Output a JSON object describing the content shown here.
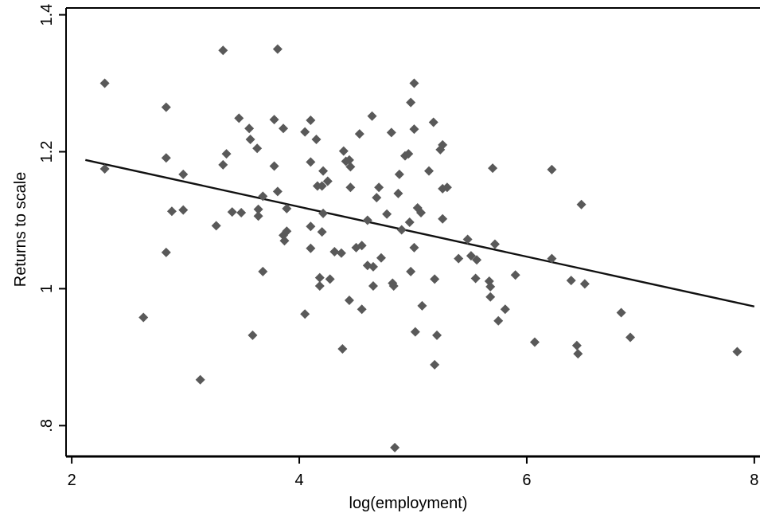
{
  "chart_data": {
    "type": "scatter",
    "title": "",
    "xlabel": "log(employment)",
    "ylabel": "Returns to scale",
    "xlim": [
      1.95,
      8.05
    ],
    "ylim": [
      0.755,
      1.41
    ],
    "x_ticks": [
      2,
      4,
      6,
      8
    ],
    "x_tick_labels": [
      "2",
      "4",
      "6",
      "8"
    ],
    "y_ticks": [
      0.8,
      1.0,
      1.2,
      1.4
    ],
    "y_tick_labels": [
      ".8",
      "1",
      "1.2",
      "1.4"
    ],
    "grid": false,
    "legend": "none",
    "marker_color": "#595959",
    "line_color": "#111111",
    "series": [
      {
        "kind": "points",
        "points": [
          [
            2.29,
            1.3
          ],
          [
            2.29,
            1.175
          ],
          [
            2.63,
            0.958
          ],
          [
            2.83,
            1.265
          ],
          [
            2.83,
            1.191
          ],
          [
            2.83,
            1.053
          ],
          [
            2.88,
            1.113
          ],
          [
            2.98,
            1.167
          ],
          [
            2.98,
            1.115
          ],
          [
            3.13,
            0.867
          ],
          [
            3.27,
            1.092
          ],
          [
            3.33,
            1.348
          ],
          [
            3.33,
            1.181
          ],
          [
            3.36,
            1.197
          ],
          [
            3.41,
            1.112
          ],
          [
            3.47,
            1.249
          ],
          [
            3.49,
            1.111
          ],
          [
            3.56,
            1.234
          ],
          [
            3.57,
            1.218
          ],
          [
            3.59,
            0.932
          ],
          [
            3.63,
            1.205
          ],
          [
            3.64,
            1.116
          ],
          [
            3.64,
            1.106
          ],
          [
            3.68,
            1.135
          ],
          [
            3.68,
            1.025
          ],
          [
            3.78,
            1.247
          ],
          [
            3.78,
            1.179
          ],
          [
            3.81,
            1.35
          ],
          [
            3.81,
            1.142
          ],
          [
            3.86,
            1.234
          ],
          [
            3.86,
            1.078
          ],
          [
            3.87,
            1.07
          ],
          [
            3.89,
            1.117
          ],
          [
            3.89,
            1.084
          ],
          [
            4.05,
            1.229
          ],
          [
            4.05,
            0.963
          ],
          [
            4.1,
            1.246
          ],
          [
            4.1,
            1.185
          ],
          [
            4.1,
            1.091
          ],
          [
            4.1,
            1.059
          ],
          [
            4.15,
            1.218
          ],
          [
            4.16,
            1.15
          ],
          [
            4.18,
            1.016
          ],
          [
            4.18,
            1.004
          ],
          [
            4.2,
            1.15
          ],
          [
            4.2,
            1.083
          ],
          [
            4.21,
            1.172
          ],
          [
            4.21,
            1.11
          ],
          [
            4.25,
            1.157
          ],
          [
            4.27,
            1.014
          ],
          [
            4.31,
            1.054
          ],
          [
            4.37,
            1.052
          ],
          [
            4.38,
            0.912
          ],
          [
            4.39,
            1.201
          ],
          [
            4.41,
            1.186
          ],
          [
            4.44,
            1.188
          ],
          [
            4.44,
            0.983
          ],
          [
            4.45,
            1.178
          ],
          [
            4.45,
            1.148
          ],
          [
            4.5,
            1.06
          ],
          [
            4.53,
            1.226
          ],
          [
            4.55,
            1.063
          ],
          [
            4.55,
            0.97
          ],
          [
            4.6,
            1.1
          ],
          [
            4.6,
            1.034
          ],
          [
            4.64,
            1.252
          ],
          [
            4.65,
            1.032
          ],
          [
            4.65,
            1.004
          ],
          [
            4.68,
            1.133
          ],
          [
            4.7,
            1.148
          ],
          [
            4.72,
            1.045
          ],
          [
            4.77,
            1.109
          ],
          [
            4.81,
            1.228
          ],
          [
            4.82,
            1.008
          ],
          [
            4.83,
            1.004
          ],
          [
            4.84,
            0.768
          ],
          [
            4.87,
            1.139
          ],
          [
            4.88,
            1.167
          ],
          [
            4.9,
            1.086
          ],
          [
            4.93,
            1.194
          ],
          [
            4.96,
            1.197
          ],
          [
            4.97,
            1.097
          ],
          [
            4.98,
            1.025
          ],
          [
            4.98,
            1.272
          ],
          [
            5.01,
            1.3
          ],
          [
            5.01,
            1.233
          ],
          [
            5.01,
            1.06
          ],
          [
            5.02,
            0.937
          ],
          [
            5.04,
            1.118
          ],
          [
            5.07,
            1.111
          ],
          [
            5.08,
            0.975
          ],
          [
            5.14,
            1.172
          ],
          [
            5.18,
            1.243
          ],
          [
            5.19,
            1.014
          ],
          [
            5.19,
            0.889
          ],
          [
            5.21,
            0.932
          ],
          [
            5.24,
            1.203
          ],
          [
            5.26,
            1.21
          ],
          [
            5.26,
            1.146
          ],
          [
            5.26,
            1.102
          ],
          [
            5.3,
            1.148
          ],
          [
            5.4,
            1.044
          ],
          [
            5.48,
            1.072
          ],
          [
            5.51,
            1.048
          ],
          [
            5.55,
            1.015
          ],
          [
            5.56,
            1.042
          ],
          [
            5.67,
            1.011
          ],
          [
            5.68,
            1.003
          ],
          [
            5.68,
            0.988
          ],
          [
            5.7,
            1.176
          ],
          [
            5.72,
            1.065
          ],
          [
            5.75,
            0.953
          ],
          [
            5.81,
            0.97
          ],
          [
            5.9,
            1.02
          ],
          [
            6.07,
            0.922
          ],
          [
            6.22,
            1.174
          ],
          [
            6.22,
            1.044
          ],
          [
            6.39,
            1.012
          ],
          [
            6.44,
            0.917
          ],
          [
            6.45,
            0.905
          ],
          [
            6.48,
            1.123
          ],
          [
            6.51,
            1.007
          ],
          [
            6.83,
            0.965
          ],
          [
            6.91,
            0.929
          ],
          [
            7.85,
            0.908
          ]
        ]
      },
      {
        "kind": "fitted-line",
        "points": [
          [
            2.12,
            1.188
          ],
          [
            8.0,
            0.974
          ]
        ]
      }
    ]
  }
}
